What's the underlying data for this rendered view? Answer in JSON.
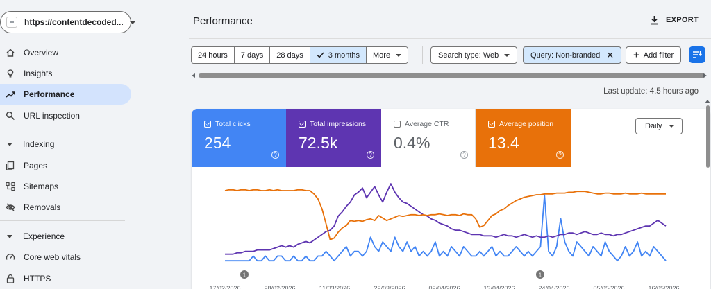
{
  "property": {
    "url": "https://contentdecoded..."
  },
  "nav": {
    "overview": "Overview",
    "insights": "Insights",
    "performance": "Performance",
    "url_inspection": "URL inspection",
    "indexing": {
      "title": "Indexing",
      "pages": "Pages",
      "sitemaps": "Sitemaps",
      "removals": "Removals"
    },
    "experience": {
      "title": "Experience",
      "core_web_vitals": "Core web vitals",
      "https": "HTTPS"
    }
  },
  "header": {
    "title": "Performance",
    "export": "EXPORT"
  },
  "date_ranges": [
    "24 hours",
    "7 days",
    "28 days",
    "3 months",
    "More"
  ],
  "selected_range": "3 months",
  "filters": {
    "search_type": "Search type: Web",
    "query": "Query: Non-branded",
    "add_filter": "Add filter"
  },
  "last_update": "Last update: 4.5 hours ago",
  "metrics": {
    "clicks": {
      "label": "Total clicks",
      "value": "254",
      "checked": true,
      "color": "#4285f4"
    },
    "impressions": {
      "label": "Total impressions",
      "value": "72.5k",
      "checked": true,
      "color": "#5e35b1"
    },
    "ctr": {
      "label": "Average CTR",
      "value": "0.4%",
      "checked": false
    },
    "position": {
      "label": "Average position",
      "value": "13.4",
      "checked": true,
      "color": "#e8710a"
    }
  },
  "granularity": "Daily",
  "chart_data": {
    "type": "line",
    "x_ticks": [
      "17/02/2026",
      "28/02/2026",
      "11/03/2026",
      "22/03/2026",
      "02/04/2026",
      "13/04/2026",
      "24/04/2026",
      "05/05/2026",
      "16/05/2026"
    ],
    "annotations": [
      "1",
      "1"
    ],
    "series": [
      {
        "name": "Total clicks",
        "color": "#4285f4",
        "values": [
          1,
          1,
          1,
          1,
          1,
          1,
          1,
          2,
          1,
          1,
          2,
          1,
          1,
          2,
          2,
          1,
          1,
          2,
          1,
          1,
          2,
          1,
          1,
          2,
          2,
          3,
          2,
          1,
          2,
          3,
          4,
          2,
          3,
          3,
          2,
          3,
          6,
          4,
          3,
          5,
          4,
          3,
          6,
          4,
          3,
          5,
          3,
          4,
          2,
          3,
          2,
          3,
          5,
          2,
          3,
          2,
          4,
          3,
          2,
          4,
          3,
          2,
          2,
          3,
          2,
          3,
          4,
          2,
          3,
          2,
          2,
          3,
          4,
          3,
          2,
          3,
          2,
          3,
          4,
          15,
          3,
          2,
          4,
          10,
          5,
          3,
          2,
          5,
          4,
          3,
          2,
          4,
          3,
          2,
          5,
          3,
          2,
          1,
          2,
          4,
          2,
          3,
          5,
          2,
          3,
          2,
          4,
          3,
          2,
          1
        ]
      },
      {
        "name": "Total impressions",
        "color": "#5e35b1",
        "values": [
          8,
          8,
          8,
          9,
          9,
          10,
          10,
          10,
          11,
          11,
          11,
          11,
          12,
          13,
          14,
          13,
          14,
          13,
          15,
          16,
          17,
          16,
          18,
          20,
          22,
          24,
          25,
          28,
          35,
          38,
          42,
          45,
          50,
          52,
          55,
          48,
          52,
          56,
          50,
          45,
          52,
          58,
          52,
          48,
          45,
          44,
          42,
          40,
          38,
          36,
          35,
          33,
          32,
          30,
          29,
          28,
          26,
          25,
          25,
          24,
          23,
          22,
          22,
          22,
          21,
          21,
          21,
          20,
          21,
          22,
          21,
          21,
          20,
          21,
          22,
          21,
          20,
          21,
          20,
          20,
          21,
          20,
          21,
          22,
          22,
          23,
          23,
          22,
          23,
          24,
          23,
          22,
          22,
          23,
          22,
          22,
          21,
          22,
          22,
          23,
          24,
          25,
          26,
          27,
          28,
          28,
          30,
          32,
          30,
          28
        ]
      },
      {
        "name": "Average position",
        "color": "#e8710a",
        "values": [
          90,
          91,
          91,
          90,
          91,
          91,
          90,
          91,
          91,
          90,
          90,
          91,
          90,
          91,
          90,
          90,
          90,
          90,
          91,
          91,
          90,
          90,
          86,
          80,
          68,
          50,
          31,
          33,
          40,
          45,
          48,
          54,
          53,
          54,
          53,
          55,
          56,
          54,
          60,
          57,
          54,
          56,
          58,
          60,
          59,
          60,
          61,
          61,
          60,
          61,
          60,
          61,
          61,
          62,
          61,
          60,
          61,
          61,
          60,
          62,
          61,
          61,
          56,
          46,
          48,
          54,
          60,
          62,
          66,
          68,
          72,
          75,
          78,
          80,
          82,
          83,
          84,
          85,
          85,
          86,
          86,
          86,
          87,
          87,
          87,
          88,
          88,
          89,
          89,
          89,
          88,
          87,
          86,
          86,
          87,
          87,
          86,
          86,
          86,
          87,
          86,
          86,
          86,
          87,
          86,
          86,
          86,
          86,
          86,
          86
        ]
      }
    ]
  }
}
